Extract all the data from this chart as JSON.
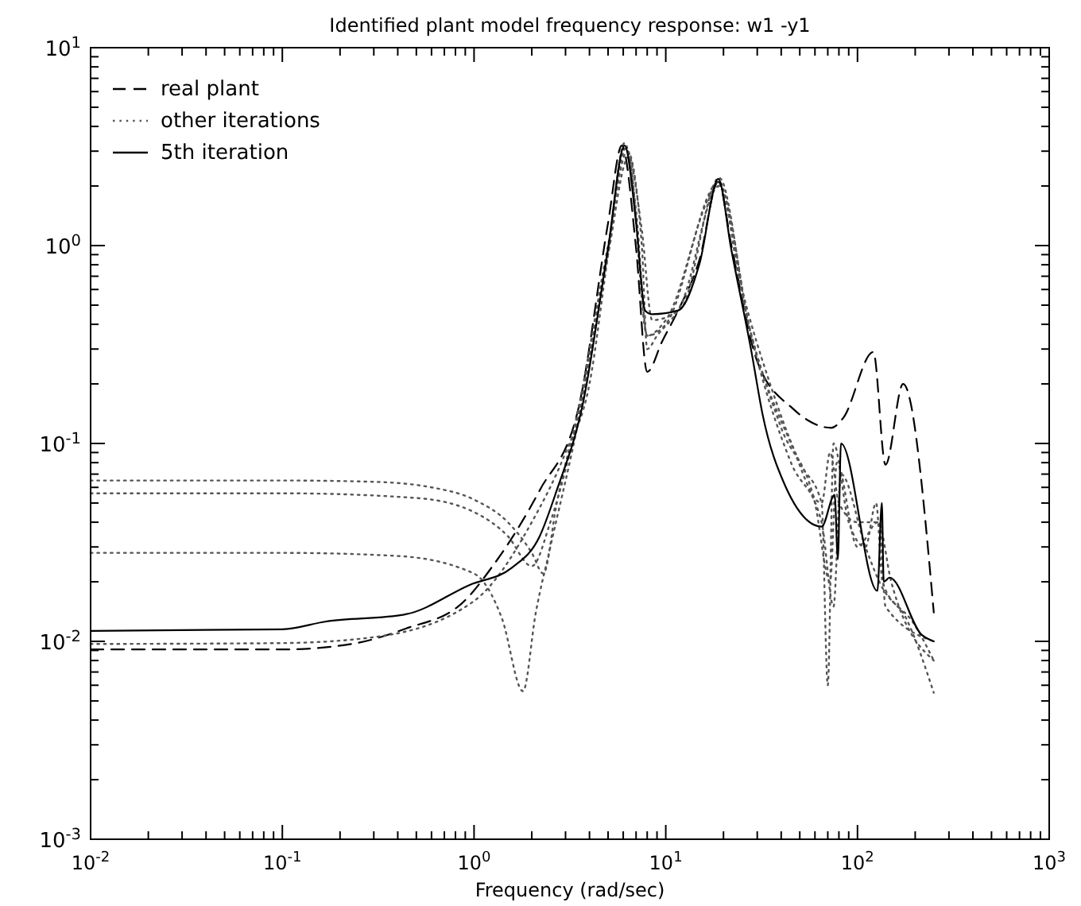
{
  "chart_data": {
    "type": "line",
    "title": "Identified plant model frequency response: w1 -y1",
    "xlabel": "Frequency (rad/sec)",
    "log": "xy",
    "grid": false,
    "legend": "top left",
    "xlim": [
      0.01,
      1000
    ],
    "ylim": [
      0.001,
      10
    ],
    "xticks": [
      {
        "value": 0.01,
        "label": "10$^{-2}$"
      },
      {
        "value": 0.02,
        "label": null
      },
      {
        "value": 0.03,
        "label": null
      },
      {
        "value": 0.04,
        "label": null
      },
      {
        "value": 0.05,
        "label": null
      },
      {
        "value": 0.06,
        "label": null
      },
      {
        "value": 0.07,
        "label": null
      },
      {
        "value": 0.08,
        "label": null
      },
      {
        "value": 0.09,
        "label": null
      },
      {
        "value": 0.1,
        "label": "10$^{-1}$"
      },
      {
        "value": 0.2,
        "label": null
      },
      {
        "value": 0.3,
        "label": null
      },
      {
        "value": 0.4,
        "label": null
      },
      {
        "value": 0.5,
        "label": null
      },
      {
        "value": 0.6,
        "label": null
      },
      {
        "value": 0.7,
        "label": null
      },
      {
        "value": 0.8,
        "label": null
      },
      {
        "value": 0.9,
        "label": null
      },
      {
        "value": 1,
        "label": "10$^{0}$"
      },
      {
        "value": 2,
        "label": null
      },
      {
        "value": 3,
        "label": null
      },
      {
        "value": 4,
        "label": null
      },
      {
        "value": 5,
        "label": null
      },
      {
        "value": 6,
        "label": null
      },
      {
        "value": 7,
        "label": null
      },
      {
        "value": 8,
        "label": null
      },
      {
        "value": 9,
        "label": null
      },
      {
        "value": 10,
        "label": "10$^{1}$"
      },
      {
        "value": 20,
        "label": null
      },
      {
        "value": 30,
        "label": null
      },
      {
        "value": 40,
        "label": null
      },
      {
        "value": 50,
        "label": null
      },
      {
        "value": 60,
        "label": null
      },
      {
        "value": 70,
        "label": null
      },
      {
        "value": 80,
        "label": null
      },
      {
        "value": 90,
        "label": null
      },
      {
        "value": 100,
        "label": "10$^{2}$"
      },
      {
        "value": 200,
        "label": null
      },
      {
        "value": 300,
        "label": null
      },
      {
        "value": 400,
        "label": null
      },
      {
        "value": 500,
        "label": null
      },
      {
        "value": 600,
        "label": null
      },
      {
        "value": 700,
        "label": null
      },
      {
        "value": 800,
        "label": null
      },
      {
        "value": 900,
        "label": null
      },
      {
        "value": 1000,
        "label": "10$^{3}$"
      }
    ],
    "yticks": [
      {
        "value": 0.001,
        "label": "10$^{-3}$"
      },
      {
        "value": 0.002,
        "label": null
      },
      {
        "value": 0.003,
        "label": null
      },
      {
        "value": 0.004,
        "label": null
      },
      {
        "value": 0.005,
        "label": null
      },
      {
        "value": 0.006,
        "label": null
      },
      {
        "value": 0.007,
        "label": null
      },
      {
        "value": 0.008,
        "label": null
      },
      {
        "value": 0.009,
        "label": null
      },
      {
        "value": 0.01,
        "label": "10$^{-2}$"
      },
      {
        "value": 0.02,
        "label": null
      },
      {
        "value": 0.03,
        "label": null
      },
      {
        "value": 0.04,
        "label": null
      },
      {
        "value": 0.05,
        "label": null
      },
      {
        "value": 0.06,
        "label": null
      },
      {
        "value": 0.07,
        "label": null
      },
      {
        "value": 0.08,
        "label": null
      },
      {
        "value": 0.09,
        "label": null
      },
      {
        "value": 0.1,
        "label": "10$^{-1}$"
      },
      {
        "value": 0.2,
        "label": null
      },
      {
        "value": 0.3,
        "label": null
      },
      {
        "value": 0.4,
        "label": null
      },
      {
        "value": 0.5,
        "label": null
      },
      {
        "value": 0.6,
        "label": null
      },
      {
        "value": 0.7,
        "label": null
      },
      {
        "value": 0.8,
        "label": null
      },
      {
        "value": 0.9,
        "label": null
      },
      {
        "value": 1,
        "label": "10$^{0}$"
      },
      {
        "value": 2,
        "label": null
      },
      {
        "value": 3,
        "label": null
      },
      {
        "value": 4,
        "label": null
      },
      {
        "value": 5,
        "label": null
      },
      {
        "value": 6,
        "label": null
      },
      {
        "value": 7,
        "label": null
      },
      {
        "value": 8,
        "label": null
      },
      {
        "value": 9,
        "label": null
      },
      {
        "value": 10,
        "label": "10$^{1}$"
      }
    ],
    "series": [
      {
        "name": "real plant",
        "color": "#000000",
        "line_style": "dashed",
        "x": [
          0.01,
          0.1,
          0.23,
          0.44,
          0.86,
          1.25,
          2.2,
          3.5,
          5,
          5.9,
          7,
          8,
          9.6,
          11.6,
          15,
          18.8,
          22,
          30,
          46,
          73,
          84,
          121,
          140,
          173,
          250
        ],
        "values": [
          0.0091,
          0.0091,
          0.0097,
          0.0116,
          0.0155,
          0.024,
          0.058,
          0.15,
          1.3,
          3.2,
          0.97,
          0.23,
          0.33,
          0.47,
          0.85,
          2.1,
          1.0,
          0.26,
          0.15,
          0.12,
          0.134,
          0.29,
          0.078,
          0.2,
          0.014
        ]
      },
      {
        "name": "other iterations",
        "color": "#555555",
        "line_style": "dotted",
        "x": [
          0.01,
          0.1,
          0.3,
          0.6,
          1,
          1.5,
          2,
          2.3,
          2.7,
          3.5,
          5,
          6.3,
          7.5,
          8,
          9,
          12,
          19,
          25,
          35,
          50,
          65,
          70,
          75,
          90,
          110,
          125,
          135,
          180,
          250
        ],
        "values": [
          0.065,
          0.065,
          0.064,
          0.06,
          0.052,
          0.04,
          0.028,
          0.022,
          0.05,
          0.15,
          1.0,
          3.0,
          1.0,
          0.3,
          0.35,
          0.5,
          2.0,
          0.6,
          0.2,
          0.08,
          0.05,
          0.006,
          0.1,
          0.04,
          0.03,
          0.05,
          0.02,
          0.013,
          0.0055
        ]
      },
      {
        "color": "#555555",
        "line_style": "dotted",
        "x": [
          0.01,
          0.1,
          0.5,
          1,
          1.5,
          2,
          2.5,
          3.5,
          5,
          6.4,
          8,
          10,
          19,
          25,
          40,
          60,
          72,
          78,
          100,
          128,
          150,
          250
        ],
        "values": [
          0.056,
          0.056,
          0.053,
          0.045,
          0.034,
          0.024,
          0.04,
          0.14,
          0.9,
          2.8,
          0.35,
          0.4,
          2.1,
          0.55,
          0.12,
          0.05,
          0.02,
          0.08,
          0.03,
          0.04,
          0.02,
          0.008
        ]
      },
      {
        "color": "#555555",
        "line_style": "dotted",
        "x": [
          0.01,
          0.1,
          0.4,
          1,
          1.4,
          1.8,
          2.1,
          2.5,
          3.5,
          5,
          6.2,
          7.5,
          8.5,
          12,
          19,
          27,
          45,
          65,
          75,
          82,
          110,
          130,
          200,
          250
        ],
        "values": [
          0.028,
          0.028,
          0.027,
          0.022,
          0.013,
          0.0056,
          0.014,
          0.03,
          0.13,
          0.95,
          3.1,
          1.2,
          0.42,
          0.48,
          2.2,
          0.4,
          0.08,
          0.04,
          0.015,
          0.07,
          0.03,
          0.02,
          0.012,
          0.008
        ]
      },
      {
        "color": "#555555",
        "line_style": "dotted",
        "x": [
          0.01,
          0.1,
          0.3,
          1,
          2,
          3,
          4,
          5,
          6.1,
          7,
          8,
          10,
          19,
          28,
          45,
          65,
          72,
          80,
          100,
          130,
          140,
          250
        ],
        "values": [
          0.0097,
          0.0098,
          0.0105,
          0.016,
          0.04,
          0.09,
          0.2,
          0.9,
          3.3,
          1.5,
          0.35,
          0.42,
          2.0,
          0.35,
          0.1,
          0.05,
          0.09,
          0.05,
          0.04,
          0.04,
          0.015,
          0.01
        ]
      },
      {
        "name": "5th iteration",
        "color": "#000000",
        "line_style": "solid",
        "x": [
          0.01,
          0.1,
          0.169,
          0.44,
          0.95,
          1.58,
          2.2,
          2.7,
          3.7,
          5,
          6.1,
          7,
          7.8,
          8.5,
          11.6,
          15,
          18.8,
          21.9,
          28,
          32,
          41.7,
          65,
          76,
          79,
          82,
          127,
          134,
          137,
          147,
          216,
          250
        ],
        "values": [
          0.0113,
          0.0115,
          0.0126,
          0.0137,
          0.0193,
          0.0236,
          0.034,
          0.058,
          0.16,
          0.97,
          3.2,
          1.31,
          0.47,
          0.45,
          0.47,
          0.81,
          2.17,
          0.97,
          0.29,
          0.14,
          0.062,
          0.038,
          0.055,
          0.026,
          0.1,
          0.018,
          0.05,
          0.02,
          0.021,
          0.0108,
          0.01
        ]
      }
    ]
  }
}
